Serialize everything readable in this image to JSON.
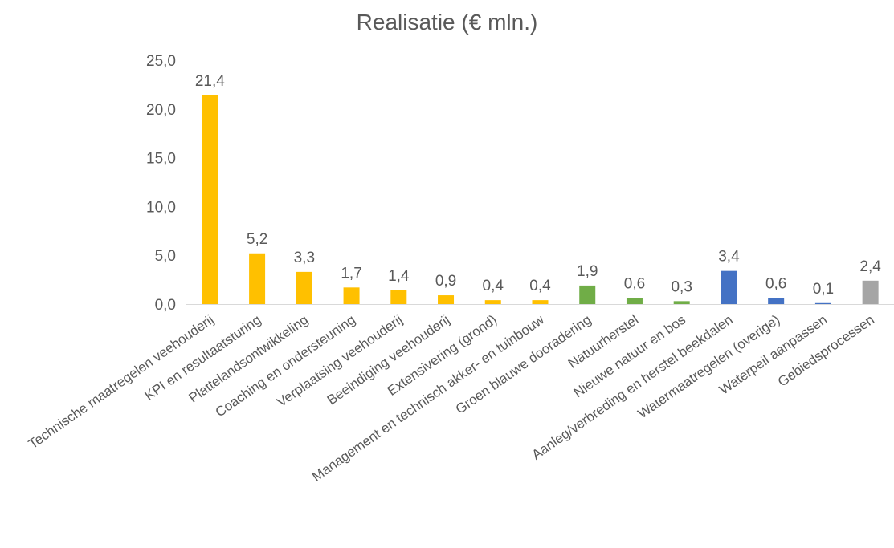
{
  "chart_data": {
    "type": "bar",
    "title": "Realisatie (€ mln.)",
    "xlabel": "",
    "ylabel": "",
    "ylim": [
      0,
      25
    ],
    "yticks": [
      "0,0",
      "5,0",
      "10,0",
      "15,0",
      "20,0",
      "25,0"
    ],
    "grid": false,
    "legend": "none",
    "categories": [
      "Technische maatregelen veehouderij",
      "KPI en resultaatsturing",
      "Plattelandsontwikkeling",
      "Coaching en ondersteuning",
      "Verplaatsing veehouderij",
      "Beeindiging veehouderij",
      "Extensivering (grond)",
      "Management en technisch akker- en tuinbouw",
      "Groen blauwe dooradering",
      "Natuurherstel",
      "Nieuwe natuur en bos",
      "Aanleg/verbreding en herstel beekdalen",
      "Watermaatregelen (overige)",
      "Waterpeil aanpassen",
      "Gebiedsprocessen"
    ],
    "values": [
      21.4,
      5.2,
      3.3,
      1.7,
      1.4,
      0.9,
      0.4,
      0.4,
      1.9,
      0.6,
      0.3,
      3.4,
      0.6,
      0.1,
      2.4
    ],
    "data_labels": [
      "21,4",
      "5,2",
      "3,3",
      "1,7",
      "1,4",
      "0,9",
      "0,4",
      "0,4",
      "1,9",
      "0,6",
      "0,3",
      "3,4",
      "0,6",
      "0,1",
      "2,4"
    ],
    "bar_colors": [
      "#FFC000",
      "#FFC000",
      "#FFC000",
      "#FFC000",
      "#FFC000",
      "#FFC000",
      "#FFC000",
      "#FFC000",
      "#70AD47",
      "#70AD47",
      "#70AD47",
      "#4472C4",
      "#4472C4",
      "#4472C4",
      "#A5A5A5"
    ]
  }
}
